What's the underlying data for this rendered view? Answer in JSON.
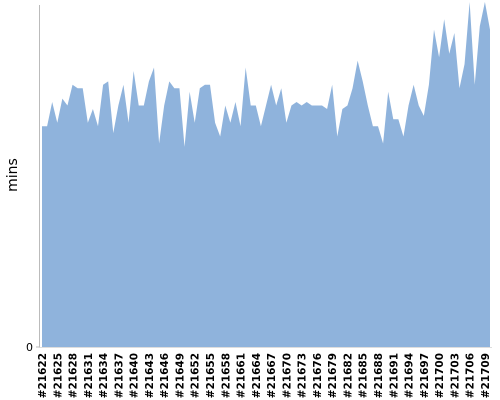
{
  "chart_data": {
    "type": "area",
    "y_label": "mins",
    "color": "#8fb3dc",
    "categories": [
      "#21622",
      null,
      null,
      "#21625",
      null,
      null,
      "#21628",
      null,
      null,
      "#21631",
      null,
      null,
      "#21634",
      null,
      null,
      "#21637",
      null,
      null,
      "#21640",
      null,
      null,
      "#21643",
      null,
      null,
      "#21646",
      null,
      null,
      "#21649",
      null,
      null,
      "#21652",
      null,
      null,
      "#21655",
      null,
      null,
      "#21658",
      null,
      null,
      "#21661",
      null,
      null,
      "#21664",
      null,
      null,
      "#21667",
      null,
      null,
      "#21670",
      null,
      null,
      "#21673",
      null,
      null,
      "#21676",
      null,
      null,
      "#21679",
      null,
      null,
      "#21682",
      null,
      null,
      "#21685",
      null,
      null,
      "#21688",
      null,
      null,
      "#21691",
      null,
      null,
      "#21694",
      null,
      null,
      "#21697",
      null,
      null,
      "#21700",
      null,
      null,
      "#21703",
      null,
      null,
      "#21706",
      null,
      null,
      "#21709",
      null
    ],
    "values": [
      64,
      64,
      71,
      65,
      72,
      70,
      76,
      75,
      75,
      65,
      69,
      64,
      76,
      77,
      62,
      70,
      76,
      65,
      80,
      70,
      70,
      77,
      81,
      59,
      70,
      77,
      75,
      75,
      58,
      74,
      65,
      75,
      76,
      76,
      65,
      61,
      70,
      65,
      71,
      64,
      81,
      70,
      70,
      64,
      70,
      76,
      70,
      75,
      65,
      70,
      71,
      70,
      71,
      70,
      70,
      70,
      69,
      76,
      61,
      69,
      70,
      75,
      83,
      77,
      70,
      64,
      64,
      59,
      74,
      66,
      66,
      61,
      70,
      76,
      70,
      67,
      76,
      92,
      84,
      95,
      85,
      91,
      75,
      82,
      100,
      76,
      93,
      100,
      92
    ],
    "ylim": [
      0,
      100
    ],
    "yticks": [
      0
    ]
  }
}
